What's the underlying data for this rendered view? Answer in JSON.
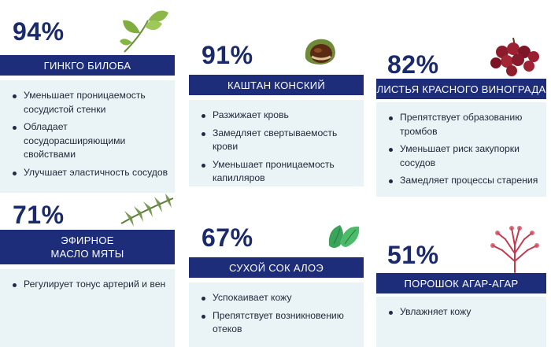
{
  "cards": [
    {
      "percent": "94%",
      "title": "ГИНКГО БИЛОБА",
      "points": [
        "Уменьшает проницаемость сосудистой стенки",
        "Обладает сосудорасширяющими свойствами",
        "Улучшает эластичность сосудов"
      ],
      "icon": "ginkgo-leaf-icon"
    },
    {
      "percent": "91%",
      "title": "КАШТАН КОНСКИЙ",
      "points": [
        "Разжижает кровь",
        "Замедляет свертываемость крови",
        "Уменьшает проницаемость капилляров"
      ],
      "icon": "chestnut-icon"
    },
    {
      "percent": "82%",
      "title": "ЛИСТЬЯ КРАСНОГО ВИНОГРАДА",
      "points": [
        "Препятствует образованию тромбов",
        "Уменьшает риск закупорки сосудов",
        "Замедляет процессы старения"
      ],
      "icon": "red-grape-icon"
    },
    {
      "percent": "71%",
      "title": "ЭФИРНОЕ МАСЛО МЯТЫ",
      "points": [
        "Регулирует тонус артерий и вен"
      ],
      "icon": "rosemary-sprig-icon"
    },
    {
      "percent": "67%",
      "title": "СУХОЙ СОК АЛОЭ",
      "points": [
        "Успокаивает кожу",
        "Препятствует возникновению отеков"
      ],
      "icon": "mint-leaf-icon"
    },
    {
      "percent": "51%",
      "title": "ПОРОШОК АГАР-АГАР",
      "points": [
        "Увлажняет кожу"
      ],
      "icon": "red-seaweed-icon"
    }
  ],
  "colors": {
    "accent": "#1d2d7a",
    "percent_text": "#1b2a6b",
    "panel_bg": "#eaf3f6"
  }
}
